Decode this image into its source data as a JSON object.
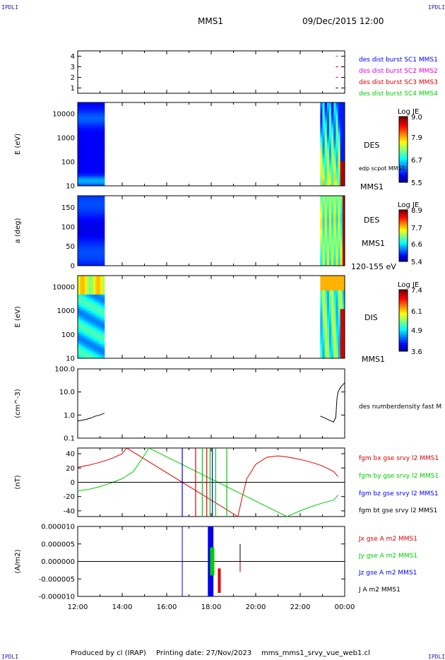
{
  "header": {
    "corner_label": "IPDLI",
    "mission": "MMS1",
    "datetime": "09/Dec/2015 12:00"
  },
  "footer": {
    "producer": "Produced by cl (IRAP)",
    "printing": "Printing date: 27/Nov/2023",
    "filename": "mms_mms1_srvy_vue_web1.cl"
  },
  "colors": {
    "blue": "#0000ee",
    "magenta": "#dd00dd",
    "red": "#dd0000",
    "green": "#00cc00",
    "black": "#000000"
  },
  "chart_data": [
    {
      "type": "scatter",
      "panel": "availability",
      "ylim": [
        0.5,
        4.5
      ],
      "yticks": [
        "1",
        "2",
        "3",
        "4"
      ],
      "legend": [
        {
          "label": "des dist burst SC1 MMS1",
          "color": "#0000ee"
        },
        {
          "label": "des dist burst SC2 MMS2",
          "color": "#dd00dd"
        },
        {
          "label": "des dist burst SC3 MMS3",
          "color": "#dd0000"
        },
        {
          "label": "des dist burst SC4 MMS4",
          "color": "#00cc00"
        }
      ]
    },
    {
      "type": "heatmap",
      "panel": "des-energy",
      "ylabel": "E (eV)",
      "yscale": "log",
      "ylim": [
        10,
        30000
      ],
      "yticks": [
        "10",
        "100",
        "1000",
        "10000"
      ],
      "right_labels": [
        "DES",
        "edp scpot MMS1",
        "MMS1"
      ],
      "colorbar": {
        "title": "Log JE",
        "ticks": [
          "9.0",
          "7.9",
          "6.7",
          "5.5"
        ],
        "range": [
          5.5,
          9.0
        ]
      }
    },
    {
      "type": "heatmap",
      "panel": "des-pitch",
      "ylabel": "a (deg)",
      "ylim": [
        0,
        180
      ],
      "yticks": [
        "0",
        "50",
        "100",
        "150"
      ],
      "right_labels": [
        "DES",
        "MMS1",
        "120-155 eV"
      ],
      "colorbar": {
        "title": "Log JE",
        "ticks": [
          "8.9",
          "7.7",
          "6.6",
          "5.4"
        ],
        "range": [
          5.4,
          8.9
        ]
      }
    },
    {
      "type": "heatmap",
      "panel": "dis-energy",
      "ylabel": "E (eV)",
      "yscale": "log",
      "ylim": [
        10,
        30000
      ],
      "yticks": [
        "10",
        "100",
        "1000",
        "10000"
      ],
      "right_labels": [
        "DIS",
        "MMS1"
      ],
      "colorbar": {
        "title": "Log JE",
        "ticks": [
          "7.4",
          "6.1",
          "4.9",
          "3.6"
        ],
        "range": [
          3.6,
          7.4
        ]
      }
    },
    {
      "type": "line",
      "panel": "density",
      "ylabel": "(cm^-3)",
      "yscale": "log",
      "ylim": [
        0.1,
        100
      ],
      "yticks": [
        "0.1",
        "1.0",
        "10.0",
        "100.0"
      ],
      "series": [
        {
          "name": "des numberdensity fast M",
          "color": "#000000",
          "x": [
            0.0,
            0.2,
            0.4,
            0.6,
            0.8,
            1.0,
            1.2
          ],
          "y": [
            0.55,
            0.6,
            0.65,
            0.75,
            0.9,
            1.0,
            1.2
          ]
        },
        {
          "name": "des numberdensity fast M",
          "color": "#000000",
          "x": [
            10.9,
            11.1,
            11.3,
            11.5,
            11.6,
            11.65,
            11.7,
            11.8,
            11.9,
            12.0
          ],
          "y": [
            0.9,
            0.75,
            0.6,
            0.5,
            0.8,
            5.0,
            10.0,
            15.0,
            20.0,
            25.0
          ]
        }
      ]
    },
    {
      "type": "line",
      "panel": "fgm",
      "ylabel": "(nT)",
      "ylim": [
        -48,
        48
      ],
      "yticks": [
        "-40",
        "-20",
        "0",
        "20",
        "40"
      ],
      "series": [
        {
          "name": "fgm bx gse srvy l2 MMS1",
          "color": "#dd0000",
          "x": [
            0.0,
            0.5,
            1.0,
            1.5,
            2.0,
            2.2,
            7.2,
            7.4,
            7.6,
            8.0,
            8.5,
            9.0,
            9.5,
            10.0,
            10.5,
            11.0,
            11.5,
            11.7
          ],
          "y": [
            21,
            24,
            28,
            33,
            40,
            48,
            -48,
            -20,
            5,
            25,
            35,
            37,
            35,
            32,
            28,
            23,
            15,
            8
          ]
        },
        {
          "name": "fgm by gse srvy l2 MMS1",
          "color": "#00cc00",
          "x": [
            0.0,
            0.5,
            1.0,
            1.5,
            2.0,
            2.5,
            3.0,
            3.2,
            9.4,
            10.0,
            10.5,
            11.0,
            11.5,
            11.7
          ],
          "y": [
            -12,
            -10,
            -6,
            -1,
            5,
            15,
            38,
            48,
            -48,
            -40,
            -34,
            -29,
            -25,
            -18
          ]
        },
        {
          "name": "fgm bz gse srvy l2 MMS1",
          "color": "#0000ee",
          "x": [
            0.0,
            12.0
          ],
          "y": [
            0,
            0
          ]
        },
        {
          "name": "fgm bt gse srvy l2 MMS1",
          "color": "#000000",
          "x": [
            0.0,
            12.0
          ],
          "y": [
            0,
            0
          ]
        }
      ]
    },
    {
      "type": "line",
      "panel": "current",
      "ylabel": "(A/m2)",
      "ylim": [
        -1e-05,
        1e-05
      ],
      "yticks": [
        "-0.000010",
        "-0.000005",
        "0.000000",
        "0.000005",
        "0.000010"
      ],
      "series": [
        {
          "name": "Jx gse A m2 MMS1",
          "color": "#dd0000",
          "x": [
            0,
            12
          ],
          "y": [
            0,
            0
          ]
        },
        {
          "name": "Jy gse A m2 MMS1",
          "color": "#00cc00",
          "x": [
            0,
            12
          ],
          "y": [
            0,
            0
          ]
        },
        {
          "name": "Jz gse A m2 MMS1",
          "color": "#0000ee",
          "x": [
            0,
            12
          ],
          "y": [
            0,
            0
          ]
        },
        {
          "name": "J A m2 MMS1",
          "color": "#000000",
          "x": [
            0,
            12
          ],
          "y": [
            0,
            0
          ]
        }
      ]
    }
  ],
  "time_axis": {
    "xlim_hours": [
      0,
      12
    ],
    "ticks": [
      "12:00",
      "14:00",
      "16:00",
      "18:00",
      "20:00",
      "22:00",
      "00:00"
    ]
  }
}
